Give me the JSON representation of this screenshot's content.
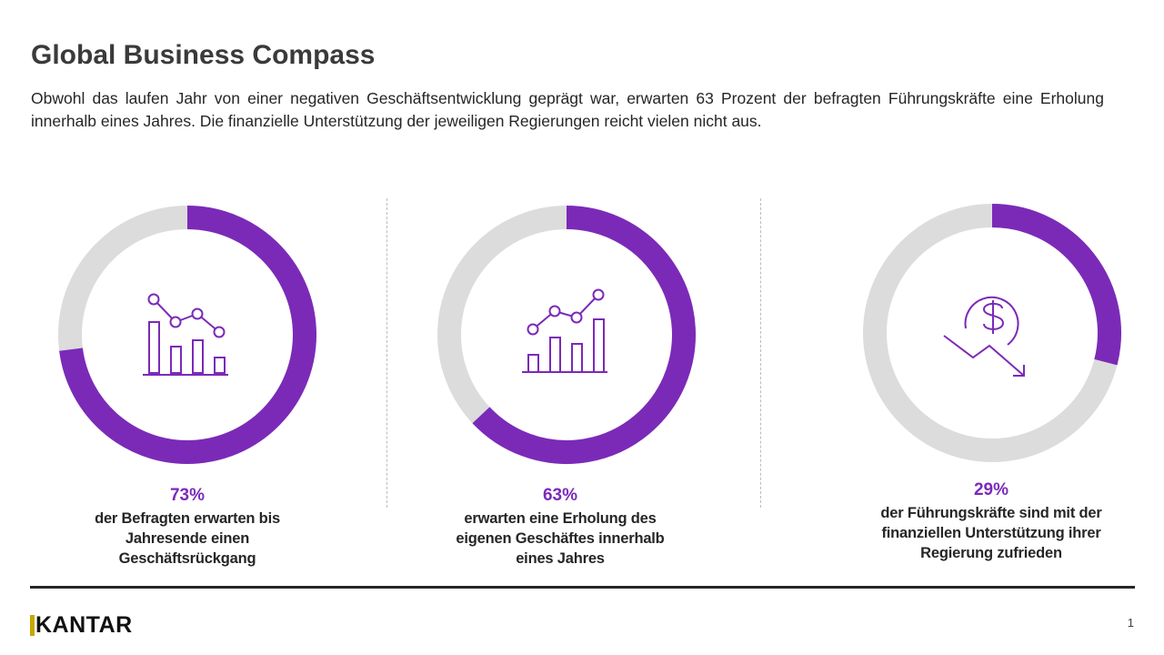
{
  "title": "Global Business Compass",
  "intro": "Obwohl das laufen Jahr von einer negativen Geschäftsentwicklung geprägt war, erwarten 63 Prozent der befragten Führungskräfte eine Erholung innerhalb eines Jahres. Die finanzielle Unterstützung der jeweiligen Regierungen reicht vielen nicht aus.",
  "colors": {
    "accent": "#7b2ab8",
    "track": "#dcdcdc",
    "logo_bar": "#c9a600"
  },
  "chart_data": [
    {
      "type": "pie",
      "subtype": "donut",
      "value_percent": 73,
      "label": "73%",
      "description": "der Befragten erwarten bis Jahresende einen Geschäftsrückgang",
      "icon": "declining-chart-icon"
    },
    {
      "type": "pie",
      "subtype": "donut",
      "value_percent": 63,
      "label": "63%",
      "description": "erwarten eine Erholung des eigenen Geschäftes innerhalb eines Jahres",
      "icon": "rising-chart-icon"
    },
    {
      "type": "pie",
      "subtype": "donut",
      "value_percent": 29,
      "label": "29%",
      "description": "der Führungskräfte sind mit der finanziellen Unterstützung ihrer Regierung zufrieden",
      "icon": "falling-dollar-icon"
    }
  ],
  "footer": {
    "logo_text": "KANTAR",
    "page_number": "1"
  }
}
